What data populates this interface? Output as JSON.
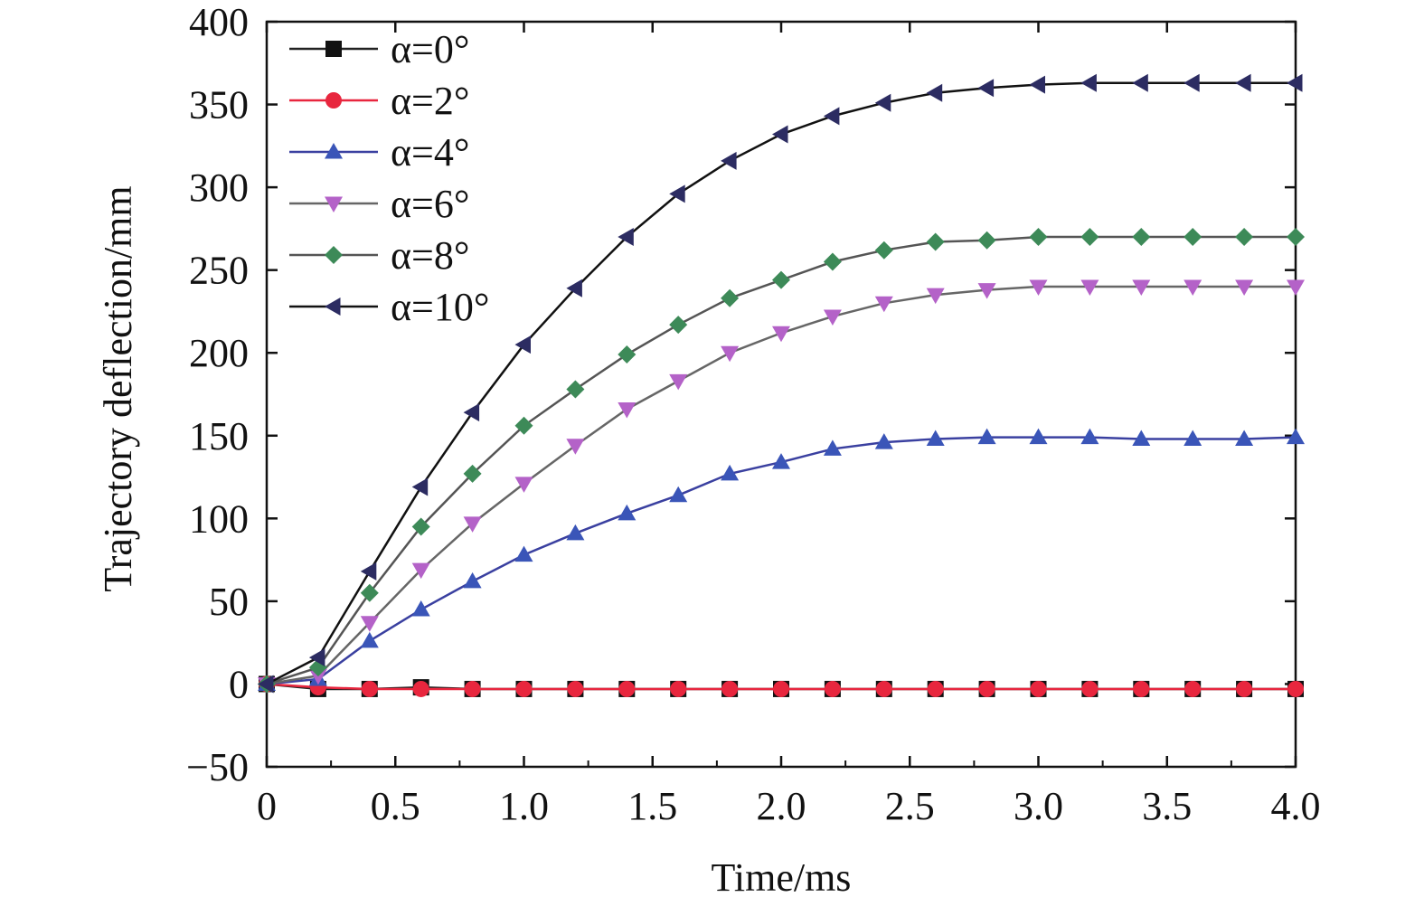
{
  "chart_data": {
    "type": "line",
    "title": "",
    "xlabel": "Time/ms",
    "ylabel": "Trajectory deflection/mm",
    "xlim": [
      0,
      4.0
    ],
    "ylim": [
      -50,
      400
    ],
    "xticks": [
      "0",
      "0.5",
      "1.0",
      "1.5",
      "2.0",
      "2.5",
      "3.0",
      "3.5",
      "4.0"
    ],
    "xtick_values": [
      0,
      0.5,
      1.0,
      1.5,
      2.0,
      2.5,
      3.0,
      3.5,
      4.0
    ],
    "yticks": [
      "−50",
      "0",
      "50",
      "100",
      "150",
      "200",
      "250",
      "300",
      "350",
      "400"
    ],
    "ytick_values": [
      -50,
      0,
      50,
      100,
      150,
      200,
      250,
      300,
      350,
      400
    ],
    "grid": false,
    "legend_position": "top-left",
    "x": [
      0,
      0.2,
      0.4,
      0.6,
      0.8,
      1.0,
      1.2,
      1.4,
      1.6,
      1.8,
      2.0,
      2.2,
      2.4,
      2.6,
      2.8,
      3.0,
      3.2,
      3.4,
      3.6,
      3.8,
      4.0
    ],
    "series": [
      {
        "name": "α=0°",
        "marker": "square",
        "color": "#111111",
        "line_color": "#222222",
        "values": [
          0,
          -3,
          -3,
          -2,
          -3,
          -3,
          -3,
          -3,
          -3,
          -3,
          -3,
          -3,
          -3,
          -3,
          -3,
          -3,
          -3,
          -3,
          -3,
          -3,
          -3
        ]
      },
      {
        "name": "α=2°",
        "marker": "circle",
        "color": "#e8263e",
        "line_color": "#e8263e",
        "values": [
          0,
          -2,
          -3,
          -3,
          -3,
          -3,
          -3,
          -3,
          -3,
          -3,
          -3,
          -3,
          -3,
          -3,
          -3,
          -3,
          -3,
          -3,
          -3,
          -3,
          -3
        ]
      },
      {
        "name": "α=4°",
        "marker": "triangle-up",
        "color": "#3a55b8",
        "line_color": "#3a40a0",
        "values": [
          0,
          3,
          26,
          45,
          62,
          78,
          91,
          103,
          114,
          127,
          134,
          142,
          146,
          148,
          149,
          149,
          149,
          148,
          148,
          148,
          149
        ]
      },
      {
        "name": "α=6°",
        "marker": "triangle-down",
        "color": "#b462c8",
        "line_color": "#666666",
        "values": [
          0,
          5,
          37,
          69,
          97,
          121,
          144,
          166,
          183,
          200,
          212,
          222,
          230,
          235,
          238,
          240,
          240,
          240,
          240,
          240,
          240
        ]
      },
      {
        "name": "α=8°",
        "marker": "diamond",
        "color": "#3d8a58",
        "line_color": "#555555",
        "values": [
          0,
          10,
          55,
          95,
          127,
          156,
          178,
          199,
          217,
          233,
          244,
          255,
          262,
          267,
          268,
          270,
          270,
          270,
          270,
          270,
          270
        ]
      },
      {
        "name": "α=10°",
        "marker": "triangle-left",
        "color": "#2c2c62",
        "line_color": "#111111",
        "values": [
          0,
          16,
          68,
          119,
          164,
          205,
          239,
          270,
          296,
          316,
          332,
          343,
          351,
          357,
          360,
          362,
          363,
          363,
          363,
          363,
          363
        ]
      }
    ]
  }
}
